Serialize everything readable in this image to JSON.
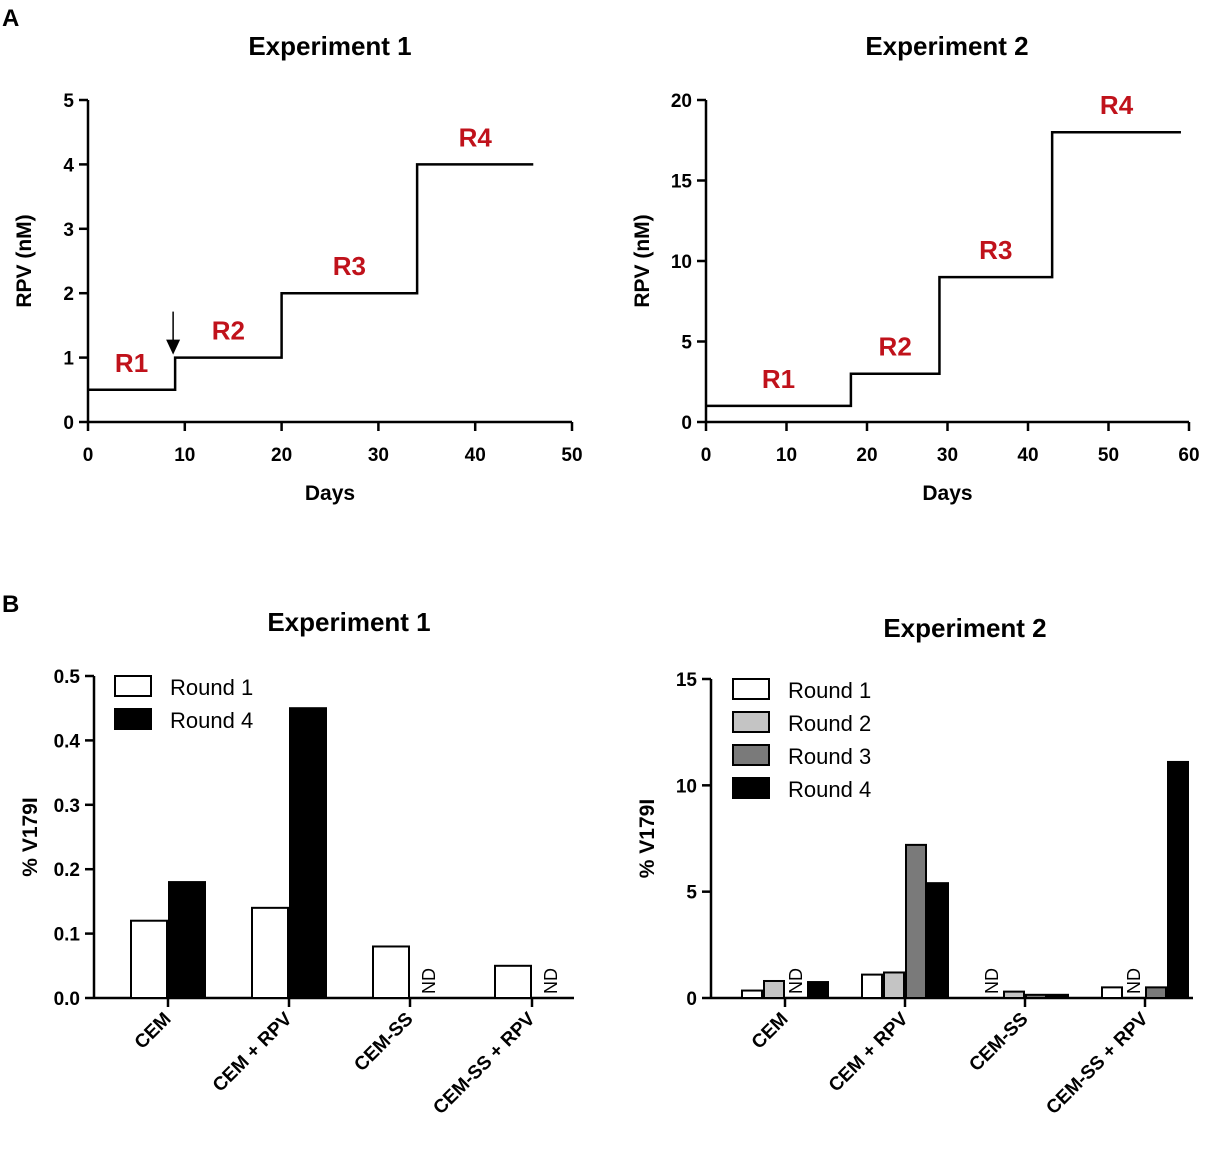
{
  "panels": {
    "a": "A",
    "b": "B"
  },
  "colors": {
    "step_label": "#c0121b",
    "line": "#000000"
  },
  "chart_data": [
    {
      "id": "A1",
      "type": "line",
      "title": "Experiment 1",
      "xlabel": "Days",
      "ylabel": "RPV (nM)",
      "xlim": [
        0,
        50
      ],
      "ylim": [
        0,
        5
      ],
      "xticks": [
        0,
        10,
        20,
        30,
        40,
        50
      ],
      "yticks": [
        0,
        1,
        2,
        3,
        4,
        5
      ],
      "steps": [
        {
          "label": "R1",
          "x0": 0,
          "x1": 9,
          "y": 0.5
        },
        {
          "label": "R2",
          "x0": 9,
          "x1": 20,
          "y": 1
        },
        {
          "label": "R3",
          "x0": 20,
          "x1": 34,
          "y": 2
        },
        {
          "label": "R4",
          "x0": 34,
          "x1": 46,
          "y": 4
        }
      ],
      "arrow_at_day": 9
    },
    {
      "id": "A2",
      "type": "line",
      "title": "Experiment 2",
      "xlabel": "Days",
      "ylabel": "RPV (nM)",
      "xlim": [
        0,
        60
      ],
      "ylim": [
        0,
        20
      ],
      "xticks": [
        0,
        10,
        20,
        30,
        40,
        50,
        60
      ],
      "yticks": [
        0,
        5,
        10,
        15,
        20
      ],
      "steps": [
        {
          "label": "R1",
          "x0": 0,
          "x1": 18,
          "y": 1
        },
        {
          "label": "R2",
          "x0": 18,
          "x1": 29,
          "y": 3
        },
        {
          "label": "R3",
          "x0": 29,
          "x1": 43,
          "y": 9
        },
        {
          "label": "R4",
          "x0": 43,
          "x1": 59,
          "y": 18
        }
      ]
    },
    {
      "id": "B1",
      "type": "bar",
      "title": "Experiment 1",
      "ylabel": "% V179I",
      "ylim": [
        0,
        0.5
      ],
      "yticks": [
        "0.0",
        "0.1",
        "0.2",
        "0.3",
        "0.4",
        "0.5"
      ],
      "categories": [
        "CEM",
        "CEM + RPV",
        "CEM-SS",
        "CEM-SS + RPV"
      ],
      "series": [
        {
          "name": "Round 1",
          "color": "#ffffff",
          "values": [
            0.12,
            0.14,
            0.08,
            0.05
          ]
        },
        {
          "name": "Round 4",
          "color": "#000000",
          "values": [
            0.18,
            0.45,
            null,
            null
          ]
        }
      ],
      "nd_label": "ND"
    },
    {
      "id": "B2",
      "type": "bar",
      "title": "Experiment 2",
      "ylabel": "% V179I",
      "ylim": [
        0,
        15
      ],
      "yticks": [
        "0",
        "5",
        "10",
        "15"
      ],
      "categories": [
        "CEM",
        "CEM + RPV",
        "CEM-SS",
        "CEM-SS + RPV"
      ],
      "series": [
        {
          "name": "Round 1",
          "color": "#ffffff",
          "values": [
            0.35,
            1.1,
            null,
            0.5
          ]
        },
        {
          "name": "Round 2",
          "color": "#c4c4c4",
          "values": [
            0.8,
            1.2,
            0.3,
            null
          ]
        },
        {
          "name": "Round 3",
          "color": "#7a7a7a",
          "values": [
            null,
            7.2,
            0.15,
            0.5
          ]
        },
        {
          "name": "Round 4",
          "color": "#000000",
          "values": [
            0.75,
            5.4,
            0.15,
            11.1
          ]
        }
      ],
      "nd_label": "ND"
    }
  ]
}
